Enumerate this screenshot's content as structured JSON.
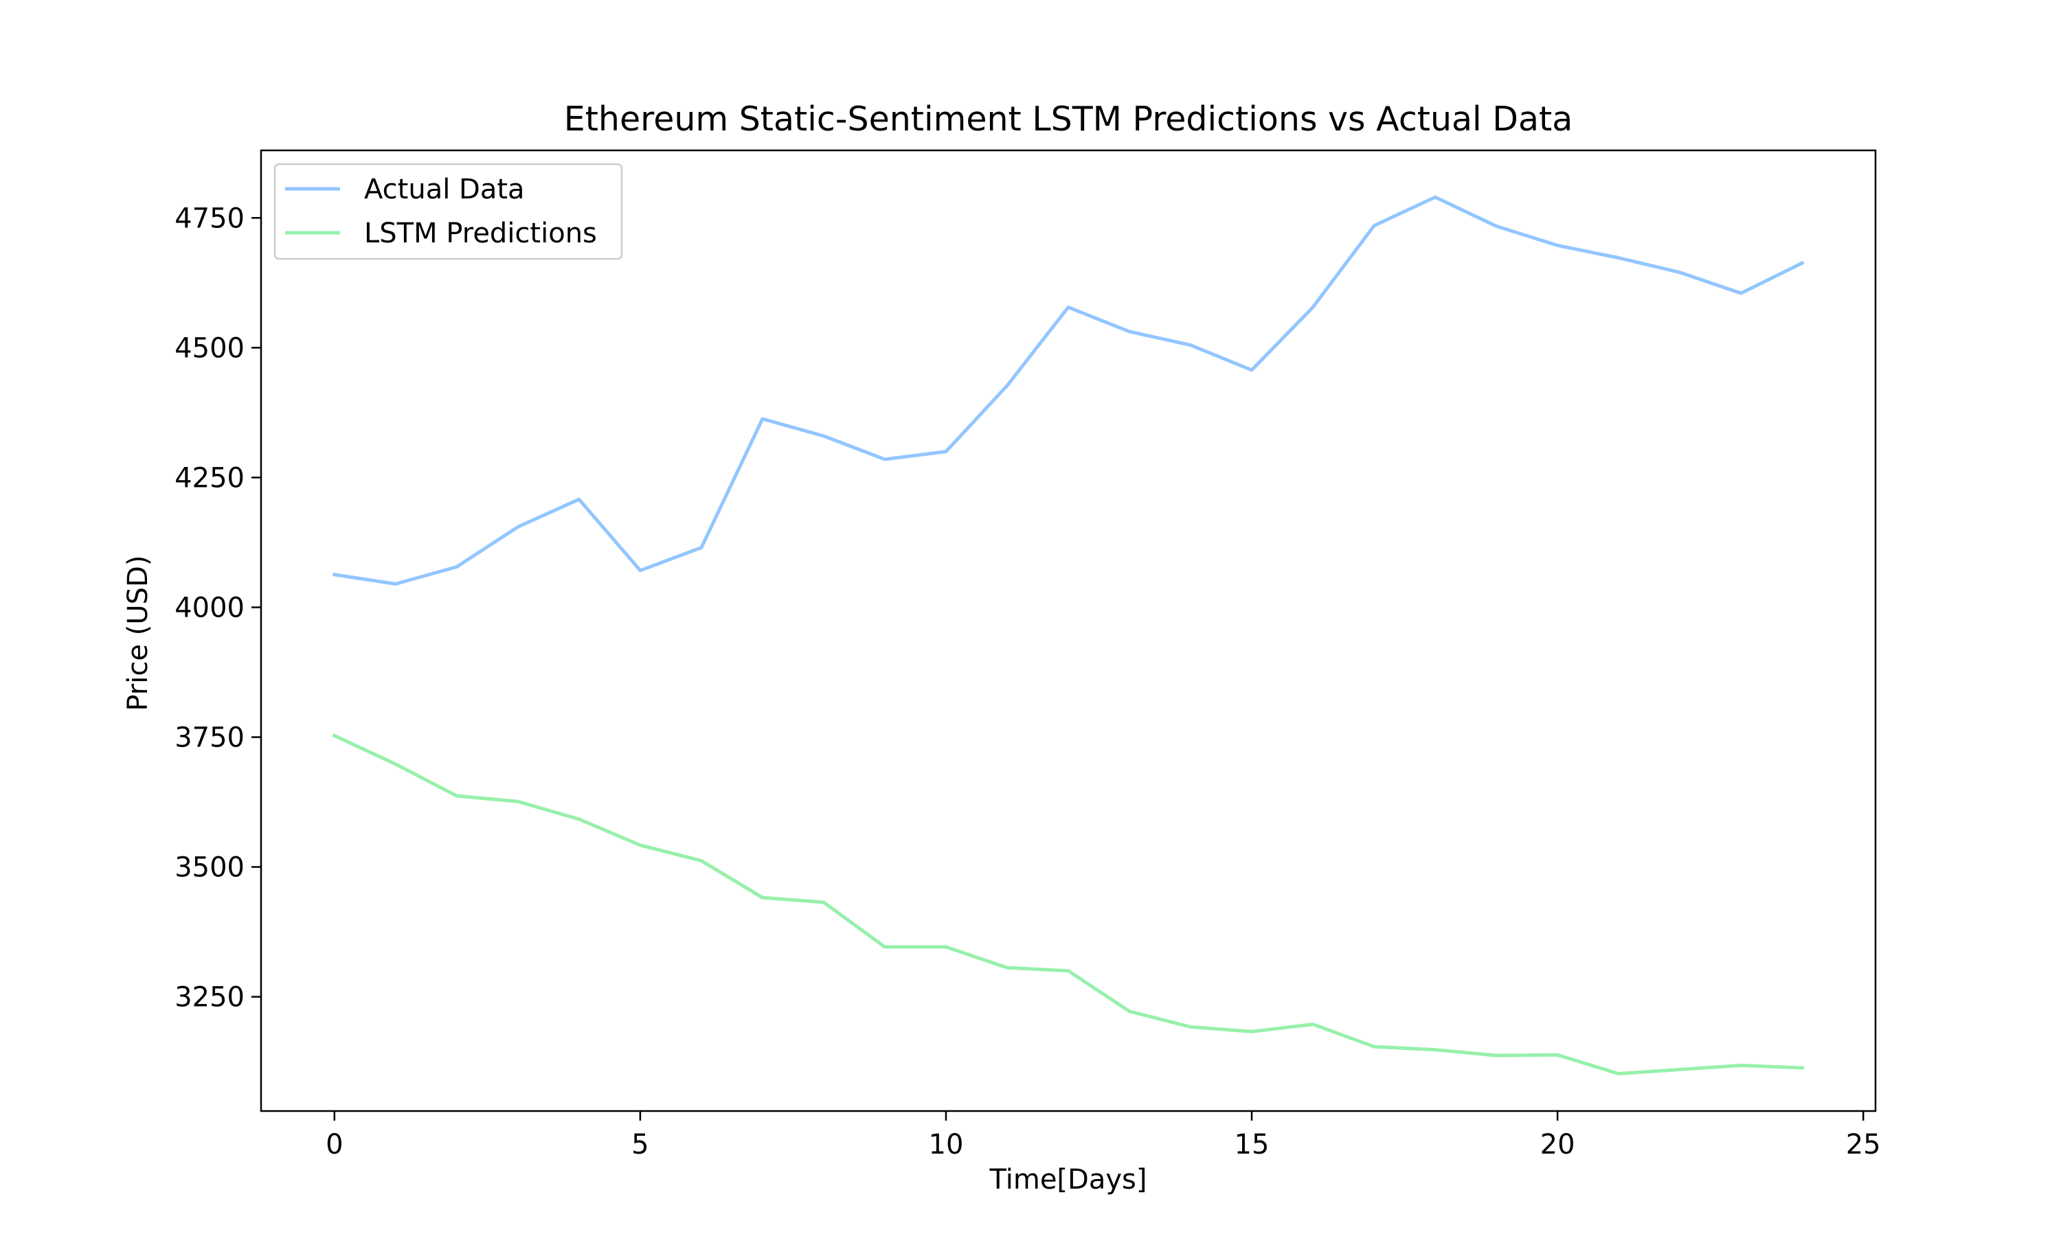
{
  "chart_data": {
    "type": "line",
    "title": "Ethereum Static-Sentiment LSTM Predictions vs Actual Data",
    "xlabel": "Time[Days]",
    "ylabel": "Price (USD)",
    "xlim": [
      -1.2,
      25.2
    ],
    "ylim": [
      3030,
      4880
    ],
    "xticks": [
      0,
      5,
      10,
      15,
      20,
      25
    ],
    "yticks": [
      3250,
      3500,
      3750,
      4000,
      4250,
      4500,
      4750
    ],
    "grid": false,
    "legend_position": "top-left",
    "x": [
      0,
      1,
      2,
      3,
      4,
      5,
      6,
      7,
      8,
      9,
      10,
      11,
      12,
      13,
      14,
      15,
      16,
      17,
      18,
      19,
      20,
      21,
      22,
      23,
      24
    ],
    "series": [
      {
        "name": "Actual Data",
        "color": "#92c6ff",
        "values": [
          4063,
          4045,
          4078,
          4155,
          4208,
          4071,
          4115,
          4363,
          4330,
          4285,
          4300,
          4427,
          4578,
          4531,
          4505,
          4457,
          4578,
          4735,
          4790,
          4734,
          4697,
          4673,
          4645,
          4605,
          4663
        ]
      },
      {
        "name": "LSTM Predictions",
        "color": "#97f0aa",
        "values": [
          3753,
          3698,
          3637,
          3626,
          3592,
          3542,
          3512,
          3441,
          3432,
          3346,
          3346,
          3306,
          3300,
          3222,
          3192,
          3183,
          3197,
          3154,
          3148,
          3137,
          3138,
          3102,
          3110,
          3118,
          3113
        ]
      }
    ]
  }
}
